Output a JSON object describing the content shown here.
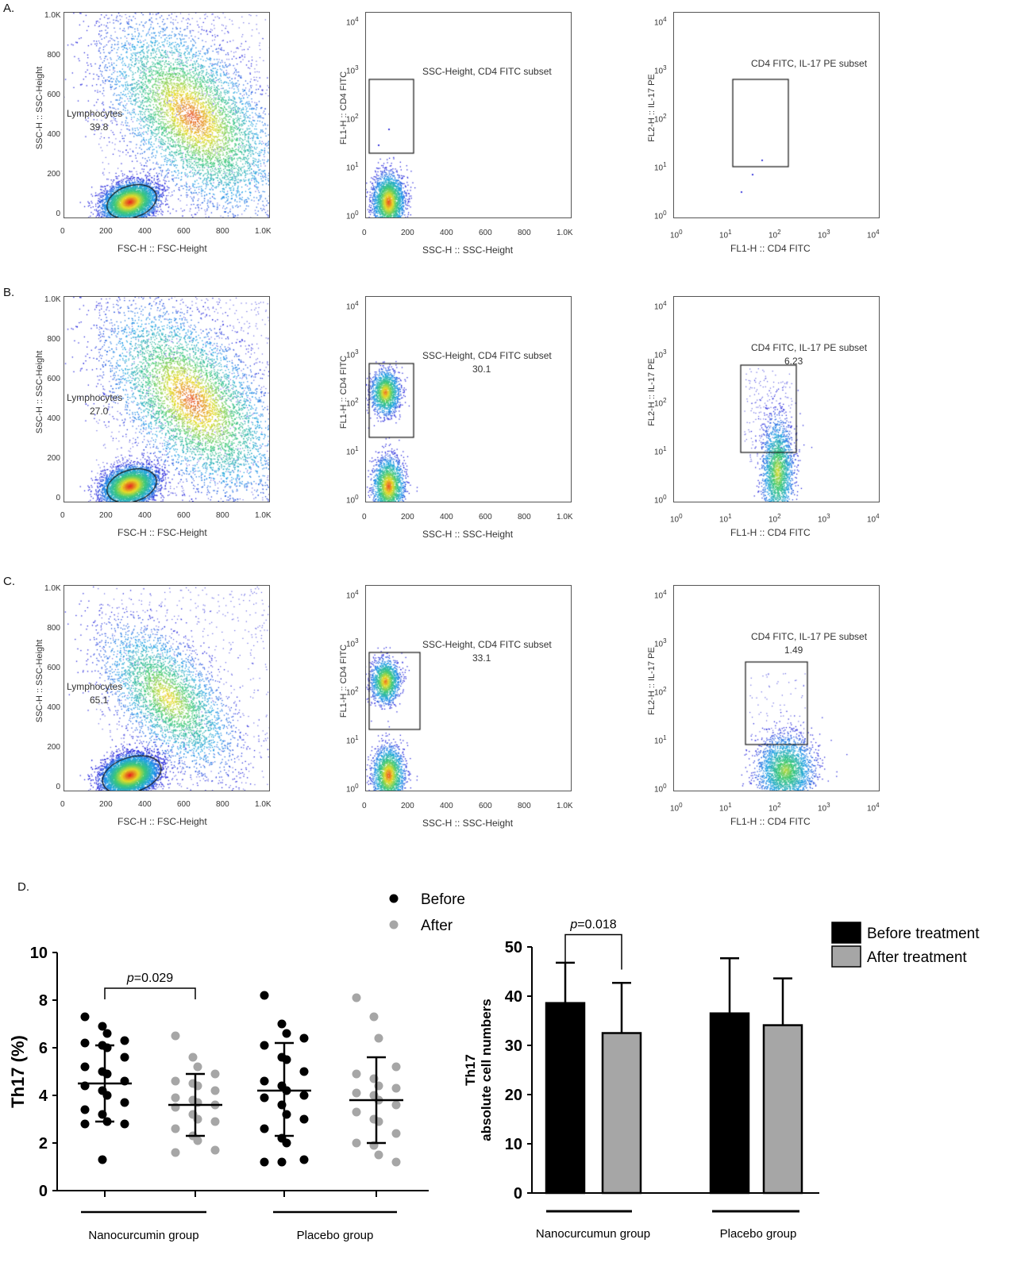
{
  "panels": [
    {
      "letter": "A.",
      "scatter": {
        "xlabel": "FSC-H :: FSC-Height",
        "ylabel": "SSC-H :: SSC-Height",
        "xticks": [
          "0",
          "200",
          "400",
          "600",
          "800",
          "1.0K"
        ],
        "yticks": [
          "0",
          "200",
          "400",
          "600",
          "800",
          "1.0K"
        ],
        "gate_name": "Lymphocytes",
        "gate_value": "39.8"
      },
      "cd4": {
        "xlabel": "SSC-H :: SSC-Height",
        "ylabel": "FL1-H :: CD4 FITC",
        "xticks": [
          "0",
          "200",
          "400",
          "600",
          "800",
          "1.0K"
        ],
        "gate_name": "SSC-Height, CD4 FITC subset",
        "gate_value": ""
      },
      "il17": {
        "xlabel": "FL1-H :: CD4 FITC",
        "ylabel": "FL2-H :: IL-17 PE",
        "gate_name": "CD4 FITC, IL-17 PE subset",
        "gate_value": ""
      }
    },
    {
      "letter": "B.",
      "scatter": {
        "xlabel": "FSC-H :: FSC-Height",
        "ylabel": "SSC-H :: SSC-Height",
        "xticks": [
          "0",
          "200",
          "400",
          "600",
          "800",
          "1.0K"
        ],
        "yticks": [
          "0",
          "200",
          "400",
          "600",
          "800",
          "1.0K"
        ],
        "gate_name": "Lymphocytes",
        "gate_value": "27.0"
      },
      "cd4": {
        "xlabel": "SSC-H :: SSC-Height",
        "ylabel": "FL1-H :: CD4 FITC",
        "xticks": [
          "0",
          "200",
          "400",
          "600",
          "800",
          "1.0K"
        ],
        "gate_name": "SSC-Height, CD4 FITC subset",
        "gate_value": "30.1"
      },
      "il17": {
        "xlabel": "FL1-H :: CD4 FITC",
        "ylabel": "FL2-H :: IL-17 PE",
        "gate_name": "CD4 FITC, IL-17 PE subset",
        "gate_value": "6.23"
      }
    },
    {
      "letter": "C.",
      "scatter": {
        "xlabel": "FSC-H :: FSC-Height",
        "ylabel": "SSC-H :: SSC-Height",
        "xticks": [
          "0",
          "200",
          "400",
          "600",
          "800",
          "1.0K"
        ],
        "yticks": [
          "0",
          "200",
          "400",
          "600",
          "800",
          "1.0K"
        ],
        "gate_name": "Lymphocytes",
        "gate_value": "65.1"
      },
      "cd4": {
        "xlabel": "SSC-H :: SSC-Height",
        "ylabel": "FL1-H :: CD4 FITC",
        "xticks": [
          "0",
          "200",
          "400",
          "600",
          "800",
          "1.0K"
        ],
        "gate_name": "SSC-Height, CD4 FITC subset",
        "gate_value": "33.1"
      },
      "il17": {
        "xlabel": "FL1-H :: CD4 FITC",
        "ylabel": "FL2-H :: IL-17 PE",
        "gate_name": "CD4 FITC, IL-17 PE subset",
        "gate_value": "1.49"
      }
    }
  ],
  "log_ticks": [
    "10",
    "10",
    "10",
    "10",
    "10"
  ],
  "log_exps": [
    "0",
    "1",
    "2",
    "3",
    "4"
  ],
  "figD_letter": "D.",
  "chart_data": [
    {
      "type": "scatter",
      "title": "",
      "ylabel": "Th17 (%)",
      "ylim": [
        0,
        10
      ],
      "yticks": [
        "0",
        "2",
        "4",
        "6",
        "8",
        "10"
      ],
      "legend": [
        {
          "name": "Before",
          "color": "#000000"
        },
        {
          "name": "After",
          "color": "#a6a6a6"
        }
      ],
      "groups": [
        "Nanocurcumin group",
        "Placebo group"
      ],
      "series": [
        {
          "name": "Nanocurcumin Before",
          "color": "#000000",
          "mean": 4.5,
          "sd_low": 2.9,
          "sd_high": 6.1,
          "values": [
            7.3,
            6.9,
            6.6,
            6.3,
            6.2,
            6.1,
            6.0,
            5.6,
            5.2,
            5.0,
            4.9,
            4.6,
            4.4,
            4.2,
            4.0,
            3.7,
            3.4,
            3.2,
            2.9,
            2.8,
            2.8,
            1.3
          ]
        },
        {
          "name": "Nanocurcumin After",
          "color": "#a6a6a6",
          "mean": 3.6,
          "sd_low": 2.3,
          "sd_high": 4.9,
          "values": [
            6.5,
            5.6,
            5.2,
            4.9,
            4.6,
            4.5,
            4.4,
            4.2,
            3.9,
            3.8,
            3.7,
            3.6,
            3.5,
            3.2,
            3.0,
            2.9,
            2.6,
            2.3,
            2.1,
            1.7,
            1.6
          ]
        },
        {
          "name": "Placebo Before",
          "color": "#000000",
          "mean": 4.2,
          "sd_low": 2.3,
          "sd_high": 6.2,
          "values": [
            8.2,
            7.0,
            6.6,
            6.4,
            6.1,
            5.6,
            5.5,
            5.0,
            4.6,
            4.4,
            4.2,
            4.0,
            3.9,
            3.6,
            3.2,
            3.0,
            2.6,
            2.2,
            2.0,
            1.3,
            1.2,
            1.2
          ]
        },
        {
          "name": "Placebo After",
          "color": "#a6a6a6",
          "mean": 3.8,
          "sd_low": 2.0,
          "sd_high": 5.6,
          "values": [
            8.1,
            7.3,
            6.4,
            5.2,
            4.9,
            4.7,
            4.4,
            4.3,
            4.1,
            4.0,
            3.8,
            3.6,
            3.3,
            3.0,
            2.9,
            2.4,
            2.0,
            1.9,
            1.5,
            1.2
          ]
        }
      ],
      "annotation": {
        "p_label": "p",
        "p_value": "=0.029"
      }
    },
    {
      "type": "bar",
      "title": "",
      "ylabel": "Th17",
      "ylabel2": "absolute cell numbers",
      "ylim": [
        0,
        50
      ],
      "yticks": [
        "0",
        "10",
        "20",
        "30",
        "40",
        "50"
      ],
      "categories": [
        "Nanocurcumun group",
        "Placebo group"
      ],
      "legend": [
        {
          "name": "Before treatment",
          "color": "#000000"
        },
        {
          "name": "After treatment",
          "color": "#a6a6a6"
        }
      ],
      "series": [
        {
          "name": "Before treatment",
          "color": "#000000",
          "values": [
            38.6,
            36.5
          ],
          "error": [
            8.2,
            11.2
          ]
        },
        {
          "name": "After treatment",
          "color": "#a6a6a6",
          "values": [
            32.5,
            34.1
          ],
          "error": [
            10.2,
            9.5
          ]
        }
      ],
      "annotation": {
        "p_label": "p",
        "p_value": "=0.018"
      }
    }
  ]
}
